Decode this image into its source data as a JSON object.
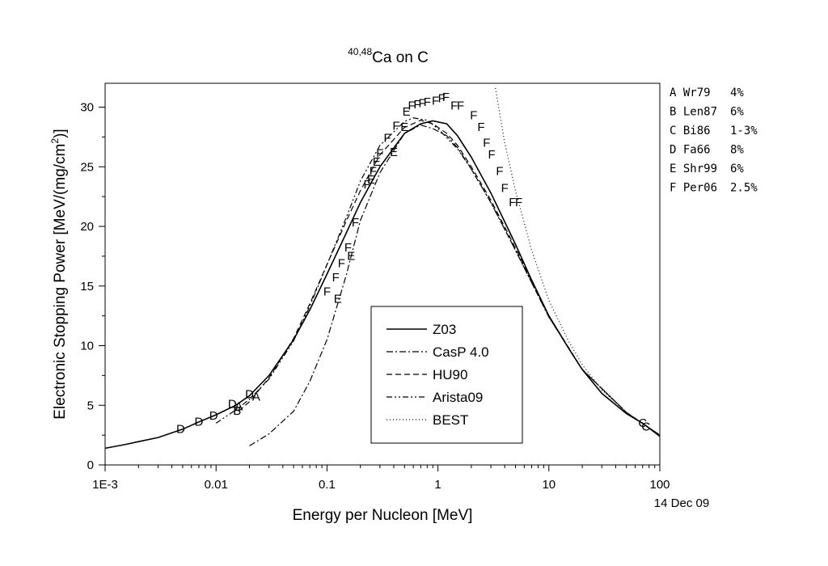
{
  "chart_data": {
    "type": "line",
    "title_super": "40,48",
    "title_main": "Ca on C",
    "xlabel": "Energy per Nucleon [MeV]",
    "ylabel_main": "Electronic Stopping Power [MeV/(mg/cm",
    "ylabel_sup": "2",
    "ylabel_close": ")]",
    "date_note": "14 Dec 09",
    "x_scale": "log",
    "xlim": [
      0.001,
      100
    ],
    "ylim": [
      0,
      32
    ],
    "x_ticks": [
      {
        "value": 0.001,
        "label": "1E-3"
      },
      {
        "value": 0.01,
        "label": "0.01"
      },
      {
        "value": 0.1,
        "label": "0.1"
      },
      {
        "value": 1,
        "label": "1"
      },
      {
        "value": 10,
        "label": "10"
      },
      {
        "value": 100,
        "label": "100"
      }
    ],
    "y_ticks": [
      0,
      5,
      10,
      15,
      20,
      25,
      30
    ],
    "legend_position": "center-bottom",
    "series": [
      {
        "name": "Z03",
        "dash": "",
        "points": [
          [
            0.001,
            1.4
          ],
          [
            0.0015,
            1.7
          ],
          [
            0.002,
            1.95
          ],
          [
            0.003,
            2.3
          ],
          [
            0.005,
            3.0
          ],
          [
            0.007,
            3.6
          ],
          [
            0.01,
            4.2
          ],
          [
            0.015,
            5.0
          ],
          [
            0.02,
            5.8
          ],
          [
            0.03,
            7.5
          ],
          [
            0.05,
            10.5
          ],
          [
            0.07,
            13.0
          ],
          [
            0.1,
            16.0
          ],
          [
            0.15,
            19.5
          ],
          [
            0.2,
            22.0
          ],
          [
            0.3,
            25.0
          ],
          [
            0.5,
            27.8
          ],
          [
            0.7,
            28.6
          ],
          [
            0.9,
            28.85
          ],
          [
            1.2,
            28.6
          ],
          [
            1.5,
            27.6
          ],
          [
            2,
            25.8
          ],
          [
            3,
            22.8
          ],
          [
            5,
            18.5
          ],
          [
            7,
            15.5
          ],
          [
            10,
            12.5
          ],
          [
            15,
            9.8
          ],
          [
            20,
            8.0
          ],
          [
            30,
            6.0
          ],
          [
            50,
            4.3
          ],
          [
            70,
            3.5
          ],
          [
            100,
            2.4
          ]
        ]
      },
      {
        "name": "CasP 4.0",
        "dash": "8,3,2,3",
        "points": [
          [
            0.02,
            1.6
          ],
          [
            0.03,
            2.6
          ],
          [
            0.05,
            4.5
          ],
          [
            0.07,
            7.0
          ],
          [
            0.1,
            10.5
          ],
          [
            0.15,
            16.0
          ],
          [
            0.2,
            20.5
          ],
          [
            0.3,
            24.5
          ],
          [
            0.5,
            27.8
          ],
          [
            0.7,
            28.5
          ],
          [
            0.9,
            28.2
          ],
          [
            1.2,
            27.6
          ],
          [
            1.5,
            26.6
          ],
          [
            2,
            24.8
          ],
          [
            3,
            22.0
          ],
          [
            5,
            18.0
          ],
          [
            10,
            12.4
          ],
          [
            20,
            8.0
          ],
          [
            50,
            4.4
          ],
          [
            100,
            2.5
          ]
        ]
      },
      {
        "name": "HU90",
        "dash": "7,4",
        "points": [
          [
            0.016,
            4.5
          ],
          [
            0.02,
            5.3
          ],
          [
            0.03,
            7.3
          ],
          [
            0.05,
            10.6
          ],
          [
            0.07,
            13.5
          ],
          [
            0.1,
            16.8
          ],
          [
            0.15,
            20.5
          ],
          [
            0.2,
            23.0
          ],
          [
            0.3,
            26.0
          ],
          [
            0.5,
            28.3
          ],
          [
            0.7,
            28.9
          ],
          [
            0.9,
            28.6
          ],
          [
            1.2,
            27.8
          ],
          [
            1.5,
            26.8
          ],
          [
            2,
            25.0
          ],
          [
            3,
            22.2
          ],
          [
            5,
            18.2
          ],
          [
            10,
            12.5
          ],
          [
            20,
            8.0
          ],
          [
            50,
            4.4
          ],
          [
            100,
            2.5
          ]
        ]
      },
      {
        "name": "Arista09",
        "dash": "7,3,2,3,2,3",
        "points": [
          [
            0.01,
            3.5
          ],
          [
            0.015,
            4.6
          ],
          [
            0.02,
            5.5
          ],
          [
            0.03,
            7.2
          ],
          [
            0.05,
            10.4
          ],
          [
            0.07,
            13.3
          ],
          [
            0.1,
            16.8
          ],
          [
            0.15,
            20.8
          ],
          [
            0.2,
            23.8
          ],
          [
            0.3,
            26.8
          ],
          [
            0.5,
            28.8
          ],
          [
            0.6,
            29.1
          ],
          [
            0.8,
            28.9
          ],
          [
            1.0,
            28.2
          ],
          [
            1.5,
            26.5
          ],
          [
            2,
            24.8
          ],
          [
            3,
            22.0
          ],
          [
            5,
            18.0
          ],
          [
            10,
            12.4
          ],
          [
            20,
            8.0
          ],
          [
            50,
            4.4
          ],
          [
            100,
            2.5
          ]
        ]
      },
      {
        "name": "BEST",
        "dash": "1,3",
        "points": [
          [
            3.3,
            31.6
          ],
          [
            4,
            27.0
          ],
          [
            5,
            23.0
          ],
          [
            7,
            18.0
          ],
          [
            10,
            13.8
          ],
          [
            15,
            10.4
          ],
          [
            20,
            8.4
          ],
          [
            30,
            6.3
          ],
          [
            50,
            4.4
          ],
          [
            70,
            3.5
          ],
          [
            100,
            2.5
          ]
        ]
      }
    ],
    "markers": [
      {
        "letter": "D",
        "points": [
          [
            0.0048,
            3.1
          ],
          [
            0.007,
            3.7
          ],
          [
            0.0095,
            4.2
          ],
          [
            0.014,
            5.2
          ],
          [
            0.02,
            6.0
          ]
        ]
      },
      {
        "letter": "A",
        "points": [
          [
            0.016,
            5.0
          ],
          [
            0.023,
            5.8
          ]
        ]
      },
      {
        "letter": "B",
        "points": [
          [
            0.0155,
            4.6
          ]
        ]
      },
      {
        "letter": "C",
        "points": [
          [
            70,
            3.6
          ],
          [
            75,
            3.3
          ]
        ]
      },
      {
        "letter": "E",
        "points": [
          [
            0.125,
            14.0
          ],
          [
            0.165,
            17.6
          ],
          [
            0.25,
            24.0
          ],
          [
            0.28,
            25.5
          ],
          [
            0.4,
            26.3
          ],
          [
            0.5,
            28.4
          ],
          [
            0.52,
            29.7
          ]
        ]
      },
      {
        "letter": "F",
        "points": [
          [
            0.1,
            14.6
          ],
          [
            0.12,
            15.8
          ],
          [
            0.135,
            17.0
          ],
          [
            0.155,
            18.3
          ],
          [
            0.18,
            20.4
          ],
          [
            0.23,
            23.6
          ],
          [
            0.26,
            24.7
          ],
          [
            0.3,
            26.2
          ],
          [
            0.35,
            27.5
          ],
          [
            0.42,
            28.5
          ],
          [
            0.58,
            30.2
          ],
          [
            0.65,
            30.3
          ],
          [
            0.72,
            30.4
          ],
          [
            0.8,
            30.5
          ],
          [
            0.95,
            30.6
          ],
          [
            1.08,
            30.8
          ],
          [
            1.18,
            30.9
          ],
          [
            1.4,
            30.2
          ],
          [
            1.6,
            30.2
          ],
          [
            2.1,
            29.4
          ],
          [
            2.45,
            28.4
          ],
          [
            2.75,
            27.1
          ],
          [
            3.05,
            26.1
          ],
          [
            3.6,
            24.7
          ],
          [
            4.0,
            23.3
          ],
          [
            4.7,
            22.1
          ],
          [
            5.35,
            22.1
          ]
        ]
      }
    ],
    "references": [
      {
        "letter": "A",
        "label": "Wr79",
        "uncertainty": "4%"
      },
      {
        "letter": "B",
        "label": "Len87",
        "uncertainty": "6%"
      },
      {
        "letter": "C",
        "label": "Bi86",
        "uncertainty": "1-3%"
      },
      {
        "letter": "D",
        "label": "Fa66",
        "uncertainty": "8%"
      },
      {
        "letter": "E",
        "label": "Shr99",
        "uncertainty": "6%"
      },
      {
        "letter": "F",
        "label": "Per06",
        "uncertainty": "2.5%"
      }
    ]
  }
}
